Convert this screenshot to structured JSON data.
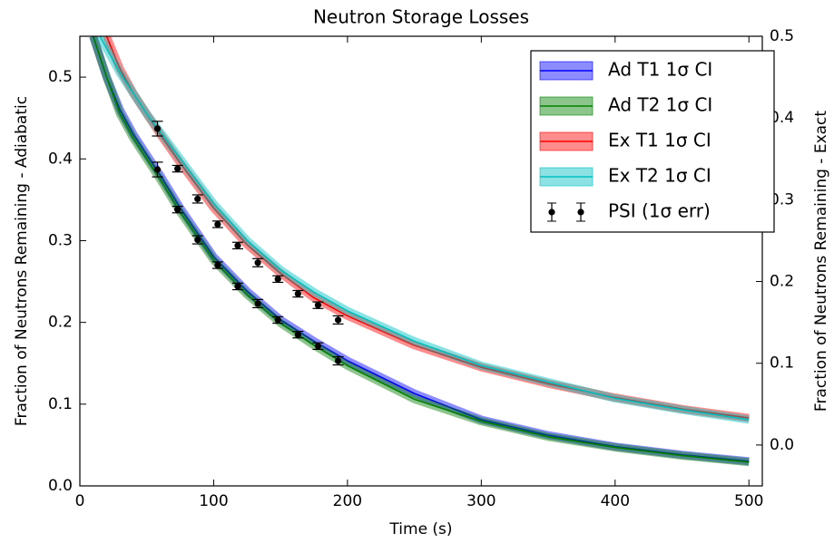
{
  "chart_data": {
    "type": "line",
    "title": "Neutron Storage Losses",
    "xlabel": "Time (s)",
    "ylabel": "Fraction of Neutrons Remaining - Adiabatic",
    "y2label": "Fraction of Neutrons Remaining - Exact",
    "xlim": [
      0,
      510
    ],
    "xticks": [
      0,
      100,
      200,
      300,
      400,
      500
    ],
    "ylim": [
      0,
      0.55
    ],
    "yticks": [
      {
        "value": 0,
        "label": "0.0"
      },
      0.1,
      0.2,
      0.3,
      0.4,
      0.5
    ],
    "y2lim": [
      -0.05,
      0.5
    ],
    "y2ticks": [
      {
        "value": 0,
        "label": "0.0"
      },
      0.1,
      0.2,
      0.3,
      0.4,
      0.5
    ],
    "legend": "upper right",
    "series": [
      {
        "name": "Ad T1 1σ CI",
        "color": "#0000ff",
        "axis": "y",
        "x": [
          10,
          20,
          30,
          40,
          50,
          60,
          75,
          100,
          125,
          150,
          175,
          200,
          250,
          300,
          350,
          400,
          450,
          500
        ],
        "values": [
          0.55,
          0.5,
          0.46,
          0.43,
          0.405,
          0.38,
          0.34,
          0.28,
          0.238,
          0.203,
          0.177,
          0.153,
          0.113,
          0.081,
          0.062,
          0.048,
          0.038,
          0.03
        ]
      },
      {
        "name": "Ad T2 1σ CI",
        "color": "#008000",
        "axis": "y",
        "x": [
          10,
          20,
          30,
          40,
          50,
          60,
          75,
          100,
          125,
          150,
          175,
          200,
          250,
          300,
          350,
          400,
          450,
          500
        ],
        "values": [
          0.55,
          0.5,
          0.455,
          0.425,
          0.4,
          0.375,
          0.335,
          0.276,
          0.234,
          0.199,
          0.172,
          0.147,
          0.106,
          0.079,
          0.06,
          0.047,
          0.037,
          0.029
        ]
      },
      {
        "name": "Ex T1 1σ CI",
        "color": "#ff0000",
        "axis": "y2",
        "x": [
          20,
          30,
          40,
          50,
          60,
          75,
          100,
          125,
          150,
          175,
          200,
          250,
          300,
          350,
          400,
          450,
          500
        ],
        "values": [
          0.5,
          0.46,
          0.43,
          0.405,
          0.38,
          0.345,
          0.29,
          0.245,
          0.21,
          0.18,
          0.158,
          0.122,
          0.095,
          0.075,
          0.058,
          0.044,
          0.033
        ]
      },
      {
        "name": "Ex T2 1σ CI",
        "color": "#00bfbf",
        "axis": "y2",
        "x": [
          15,
          30,
          40,
          50,
          60,
          75,
          100,
          125,
          150,
          175,
          200,
          250,
          300,
          350,
          400,
          450,
          500
        ],
        "values": [
          0.5,
          0.455,
          0.43,
          0.405,
          0.383,
          0.35,
          0.295,
          0.25,
          0.214,
          0.187,
          0.164,
          0.127,
          0.097,
          0.077,
          0.057,
          0.043,
          0.031
        ]
      },
      {
        "name": "PSI (1σ err)",
        "color": "#000000",
        "axis": [
          "y",
          "y2"
        ],
        "type": "errorbar",
        "x": [
          58,
          73,
          88,
          103,
          118,
          133,
          148,
          163,
          178,
          193
        ],
        "values": [
          0.387,
          0.338,
          0.301,
          0.27,
          0.244,
          0.223,
          0.203,
          0.185,
          0.171,
          0.153
        ],
        "errors": [
          0.009,
          0.004,
          0.005,
          0.004,
          0.004,
          0.005,
          0.004,
          0.004,
          0.004,
          0.005
        ]
      }
    ]
  }
}
